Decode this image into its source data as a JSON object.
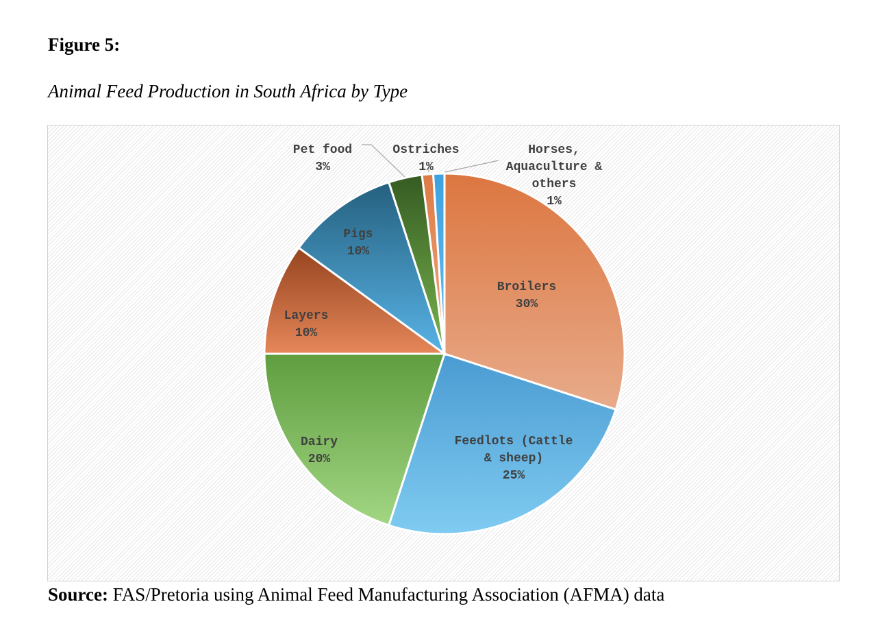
{
  "figure_label": "Figure 5:",
  "figure_title": "Animal Feed Production in South Africa by Type",
  "source": {
    "label": "Source:",
    "text": " FAS/Pretoria using Animal Feed Manufacturing Association (AFMA) data"
  },
  "chart_data": {
    "type": "pie",
    "title": "Animal Feed Production in South Africa by Type",
    "categories": [
      "Broilers",
      "Feedlots (Cattle & sheep)",
      "Dairy",
      "Layers",
      "Pigs",
      "Pet food",
      "Ostriches",
      "Horses, Aquaculture & others"
    ],
    "values": [
      30,
      25,
      20,
      10,
      10,
      3,
      1,
      1
    ],
    "value_labels": [
      "30%",
      "25%",
      "20%",
      "10%",
      "10%",
      "3%",
      "1%",
      "1%"
    ],
    "label_lines": [
      [
        "Broilers"
      ],
      [
        "Feedlots (Cattle",
        "& sheep)"
      ],
      [
        "Dairy"
      ],
      [
        "Layers"
      ],
      [
        "Pigs"
      ],
      [
        "Pet food"
      ],
      [
        "Ostriches"
      ],
      [
        "Horses,",
        "Aquaculture &",
        "others"
      ]
    ],
    "colors": [
      [
        "#dc7640",
        "#e8ab8a"
      ],
      [
        "#4a9bd2",
        "#7fcbf1"
      ],
      [
        "#5f9d3f",
        "#a2d683"
      ],
      [
        "#96441f",
        "#e6875a"
      ],
      [
        "#25607f",
        "#58b3e6"
      ],
      [
        "#355b22",
        "#79b44f"
      ],
      [
        "#dc7a45",
        "#f0aa85"
      ],
      [
        "#3ea2e0",
        "#68bcee"
      ]
    ],
    "start_angle_deg": 0,
    "direction": "clockwise",
    "data_labels": "category name and percentage"
  }
}
